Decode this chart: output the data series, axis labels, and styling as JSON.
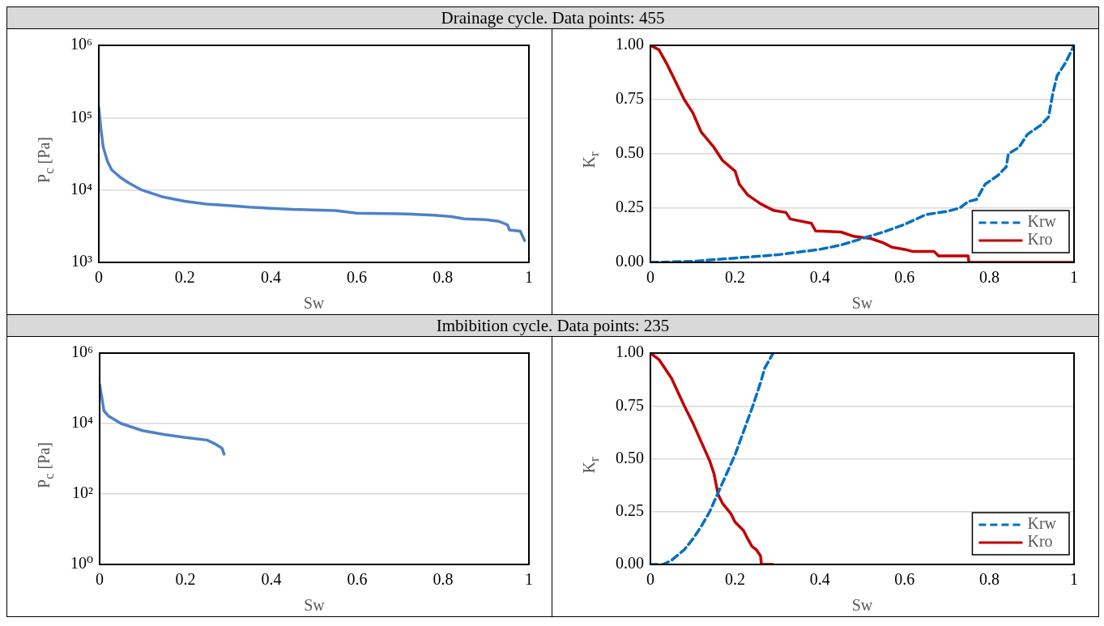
{
  "chart_data": [
    {
      "type": "line",
      "title": "Drainage cycle. Data points: 455",
      "xlabel": "Sw",
      "ylabel": "P$_{c}$ [Pa]",
      "log": true,
      "grid": "y",
      "xlim": [
        0,
        1
      ],
      "xticks": [
        0,
        0.2,
        0.4,
        0.6,
        0.8,
        1
      ],
      "ylim": [
        1000,
        1000000
      ],
      "yticks": [
        {
          "value": 1000,
          "label": "10³"
        },
        {
          "value": 10000,
          "label": "10⁴"
        },
        {
          "value": 100000,
          "label": "10⁵"
        },
        {
          "value": 1000000,
          "label": "10⁶"
        }
      ],
      "series": [
        {
          "color": "#4f81c7",
          "line_style": "solid",
          "x": [
            0,
            0.005,
            0.01,
            0.02,
            0.03,
            0.05,
            0.07,
            0.1,
            0.15,
            0.2,
            0.25,
            0.3,
            0.35,
            0.4,
            0.45,
            0.5,
            0.55,
            0.6,
            0.7,
            0.78,
            0.82,
            0.85,
            0.9,
            0.93,
            0.95,
            0.955,
            0.98,
            0.99
          ],
          "values": [
            140000,
            70000,
            40000,
            25000,
            19000,
            15000,
            12500,
            10000,
            8000,
            7000,
            6400,
            6100,
            5800,
            5600,
            5400,
            5300,
            5200,
            4800,
            4700,
            4500,
            4300,
            4000,
            3900,
            3700,
            3300,
            2800,
            2700,
            2000
          ]
        }
      ]
    },
    {
      "type": "line",
      "xlabel": "Sw",
      "ylabel": "K$_{r}$",
      "grid": "y",
      "legend": "bottom right",
      "xlim": [
        0,
        1
      ],
      "xticks": [
        0,
        0.2,
        0.4,
        0.6,
        0.8,
        1
      ],
      "ylim": [
        0,
        1
      ],
      "yticks": [
        {
          "value": 0,
          "label": "0.00"
        },
        {
          "value": 0.25,
          "label": "0.25"
        },
        {
          "value": 0.5,
          "label": "0.50"
        },
        {
          "value": 0.75,
          "label": "0.75"
        },
        {
          "value": 1,
          "label": "1.00"
        }
      ],
      "series": [
        {
          "name": "Krw",
          "color": "#0070c0",
          "line_style": "dashed",
          "x": [
            0,
            0.1,
            0.2,
            0.3,
            0.4,
            0.45,
            0.5,
            0.55,
            0.6,
            0.65,
            0.7,
            0.73,
            0.75,
            0.77,
            0.79,
            0.82,
            0.84,
            0.845,
            0.87,
            0.89,
            0.92,
            0.94,
            0.95,
            0.96,
            0.98,
            1
          ],
          "values": [
            0,
            0.005,
            0.02,
            0.035,
            0.06,
            0.08,
            0.11,
            0.14,
            0.175,
            0.22,
            0.235,
            0.25,
            0.28,
            0.29,
            0.36,
            0.4,
            0.44,
            0.5,
            0.53,
            0.59,
            0.63,
            0.67,
            0.78,
            0.86,
            0.92,
            1
          ]
        },
        {
          "name": "Kro",
          "color": "#c00000",
          "line_style": "solid",
          "x": [
            0,
            0.02,
            0.04,
            0.06,
            0.08,
            0.1,
            0.12,
            0.15,
            0.17,
            0.2,
            0.21,
            0.23,
            0.26,
            0.29,
            0.32,
            0.33,
            0.38,
            0.39,
            0.45,
            0.48,
            0.52,
            0.55,
            0.57,
            0.6,
            0.62,
            0.67,
            0.68,
            0.75,
            0.752,
            1
          ],
          "values": [
            1,
            0.98,
            0.91,
            0.83,
            0.75,
            0.69,
            0.6,
            0.53,
            0.47,
            0.42,
            0.36,
            0.31,
            0.27,
            0.24,
            0.23,
            0.2,
            0.18,
            0.145,
            0.14,
            0.12,
            0.11,
            0.09,
            0.07,
            0.06,
            0.05,
            0.05,
            0.03,
            0.03,
            0,
            0
          ]
        }
      ]
    },
    {
      "type": "line",
      "title": "Imbibition cycle. Data points: 235",
      "xlabel": "Sw",
      "ylabel": "P$_{c}$ [Pa]",
      "log": true,
      "grid": "y",
      "xlim": [
        0,
        1
      ],
      "xticks": [
        0,
        0.2,
        0.4,
        0.6,
        0.8,
        1
      ],
      "ylim": [
        1,
        1000000
      ],
      "yticks": [
        {
          "value": 1,
          "label": "10⁰"
        },
        {
          "value": 100,
          "label": "10²"
        },
        {
          "value": 10000,
          "label": "10⁴"
        },
        {
          "value": 1000000,
          "label": "10⁶"
        }
      ],
      "series": [
        {
          "color": "#4f81c7",
          "line_style": "solid",
          "x": [
            0,
            0.01,
            0.02,
            0.05,
            0.1,
            0.15,
            0.2,
            0.25,
            0.27,
            0.285,
            0.29
          ],
          "values": [
            130000,
            23000,
            16600,
            10000,
            6300,
            4900,
            4000,
            3400,
            2600,
            2000,
            1350
          ]
        }
      ]
    },
    {
      "type": "line",
      "xlabel": "Sw",
      "ylabel": "K$_{r}$",
      "grid": "y",
      "legend": "bottom right",
      "xlim": [
        0,
        1
      ],
      "xticks": [
        0,
        0.2,
        0.4,
        0.6,
        0.8,
        1
      ],
      "ylim": [
        0,
        1
      ],
      "yticks": [
        {
          "value": 0,
          "label": "0.00"
        },
        {
          "value": 0.25,
          "label": "0.25"
        },
        {
          "value": 0.5,
          "label": "0.50"
        },
        {
          "value": 0.75,
          "label": "0.75"
        },
        {
          "value": 1,
          "label": "1.00"
        }
      ],
      "series": [
        {
          "name": "Krw",
          "color": "#0070c0",
          "line_style": "dashed",
          "x": [
            0,
            0.03,
            0.05,
            0.08,
            0.1,
            0.12,
            0.14,
            0.16,
            0.18,
            0.2,
            0.22,
            0.24,
            0.26,
            0.27,
            0.29
          ],
          "values": [
            0,
            0,
            0.02,
            0.07,
            0.12,
            0.18,
            0.25,
            0.34,
            0.43,
            0.52,
            0.63,
            0.74,
            0.86,
            0.93,
            1
          ]
        },
        {
          "name": "Kro",
          "color": "#c00000",
          "line_style": "solid",
          "x": [
            0,
            0.02,
            0.05,
            0.08,
            0.1,
            0.12,
            0.14,
            0.15,
            0.16,
            0.17,
            0.19,
            0.2,
            0.22,
            0.23,
            0.24,
            0.25,
            0.26,
            0.262,
            0.29
          ],
          "values": [
            1,
            0.97,
            0.88,
            0.75,
            0.67,
            0.58,
            0.49,
            0.43,
            0.33,
            0.29,
            0.24,
            0.2,
            0.16,
            0.12,
            0.085,
            0.07,
            0.04,
            0,
            0
          ]
        }
      ]
    }
  ]
}
